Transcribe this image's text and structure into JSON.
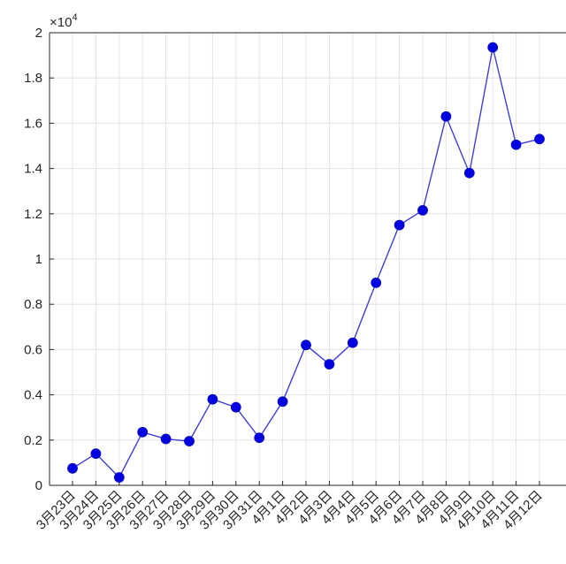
{
  "chart_data": {
    "type": "line",
    "title": "",
    "xlabel": "",
    "ylabel": "",
    "y_exponent_label": "×10",
    "y_exponent_power": "4",
    "categories": [
      "3月23日",
      "3月24日",
      "3月25日",
      "3月26日",
      "3月27日",
      "3月28日",
      "3月29日",
      "3月30日",
      "3月31日",
      "4月1日",
      "4月2日",
      "4月3日",
      "4月4日",
      "4月5日",
      "4月6日",
      "4月7日",
      "4月8日",
      "4月9日",
      "4月10日",
      "4月11日",
      "4月12日"
    ],
    "series": [
      {
        "values": [
          750,
          1400,
          350,
          2350,
          2050,
          1950,
          3800,
          3450,
          2100,
          3700,
          6200,
          5350,
          6300,
          8950,
          11500,
          12150,
          16300,
          13800,
          19350,
          15050,
          15300
        ]
      }
    ],
    "ylim": [
      0,
      20000
    ],
    "yticks": [
      0,
      2000,
      4000,
      6000,
      8000,
      10000,
      12000,
      14000,
      16000,
      18000,
      20000
    ],
    "ytick_labels": [
      "0",
      "0.2",
      "0.4",
      "0.6",
      "0.8",
      "1",
      "1.2",
      "1.4",
      "1.6",
      "1.8",
      "2"
    ],
    "grid": true,
    "colors": {
      "line": "#3f3fd8",
      "marker": "#0000e0",
      "grid": "#e3e3e3",
      "axis": "#262626"
    }
  }
}
